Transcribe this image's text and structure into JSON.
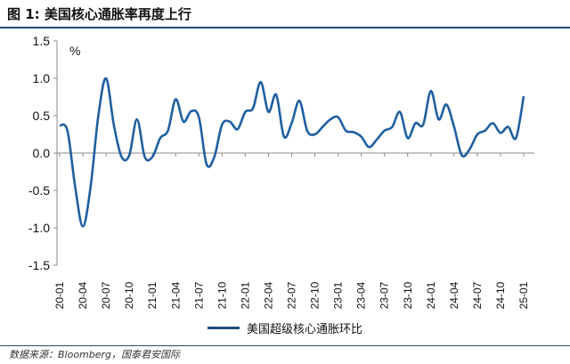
{
  "title": "图 1:  美国核心通胀率再度上行",
  "source": "数据来源：Bloomberg，国泰君安国际",
  "colors": {
    "accent": "#1f4e79",
    "line": "#1f5fa0"
  },
  "chart_data": {
    "type": "line",
    "ylabel_unit": "%",
    "ylim": [
      -1.5,
      1.5
    ],
    "yticks": [
      "1.5",
      "1.0",
      "0.5",
      "0.0",
      "-0.5",
      "-1.0",
      "-1.5"
    ],
    "ytick_values": [
      1.5,
      1.0,
      0.5,
      0.0,
      -0.5,
      -1.0,
      -1.5
    ],
    "xtick_labels": [
      "20-01",
      "20-04",
      "20-07",
      "20-10",
      "21-01",
      "21-04",
      "21-07",
      "21-10",
      "22-01",
      "22-04",
      "22-07",
      "22-10",
      "23-01",
      "23-04",
      "23-07",
      "23-10",
      "24-01",
      "24-04",
      "24-07",
      "24-10",
      "25-01"
    ],
    "grid": false,
    "legend_position": "bottom",
    "series": [
      {
        "name": "美国超级核心通胀环比",
        "x": [
          "20-01",
          "20-02",
          "20-03",
          "20-04",
          "20-05",
          "20-06",
          "20-07",
          "20-08",
          "20-09",
          "20-10",
          "20-11",
          "20-12",
          "21-01",
          "21-02",
          "21-03",
          "21-04",
          "21-05",
          "21-06",
          "21-07",
          "21-08",
          "21-09",
          "21-10",
          "21-11",
          "21-12",
          "22-01",
          "22-02",
          "22-03",
          "22-04",
          "22-05",
          "22-06",
          "22-07",
          "22-08",
          "22-09",
          "22-10",
          "22-11",
          "22-12",
          "23-01",
          "23-02",
          "23-03",
          "23-04",
          "23-05",
          "23-06",
          "23-07",
          "23-08",
          "23-09",
          "23-10",
          "23-11",
          "23-12",
          "24-01",
          "24-02",
          "24-03",
          "24-04",
          "24-05",
          "24-06",
          "24-07",
          "24-08",
          "24-09",
          "24-10",
          "24-11",
          "24-12",
          "25-01"
        ],
        "values": [
          0.37,
          0.3,
          -0.45,
          -0.98,
          -0.45,
          0.5,
          1.0,
          0.38,
          -0.05,
          -0.03,
          0.45,
          -0.05,
          -0.05,
          0.2,
          0.3,
          0.72,
          0.42,
          0.56,
          0.48,
          -0.15,
          -0.05,
          0.38,
          0.42,
          0.32,
          0.55,
          0.6,
          0.95,
          0.55,
          0.78,
          0.22,
          0.4,
          0.7,
          0.3,
          0.25,
          0.35,
          0.45,
          0.48,
          0.3,
          0.28,
          0.22,
          0.08,
          0.18,
          0.3,
          0.35,
          0.55,
          0.2,
          0.4,
          0.38,
          0.83,
          0.45,
          0.65,
          0.35,
          -0.03,
          0.05,
          0.25,
          0.3,
          0.4,
          0.27,
          0.35,
          0.2,
          0.76
        ]
      }
    ]
  }
}
